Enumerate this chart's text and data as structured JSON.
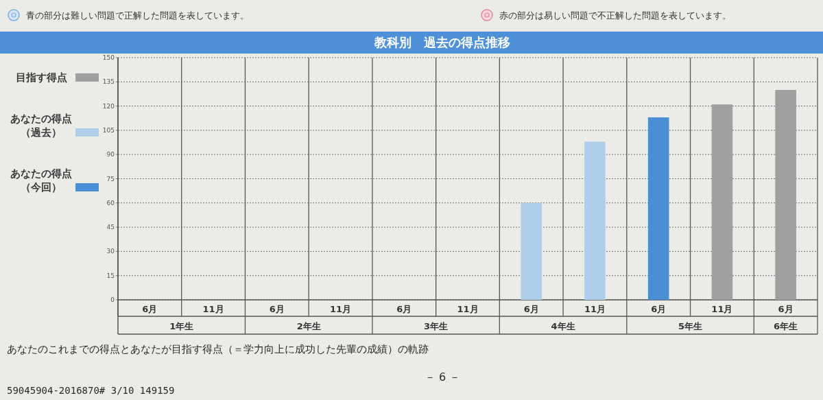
{
  "chart_data": {
    "type": "bar",
    "title": "教科別　過去の得点推移",
    "categories": [
      "6月",
      "11月",
      "6月",
      "11月",
      "6月",
      "11月",
      "6月",
      "11月",
      "6月",
      "11月",
      "6月"
    ],
    "series": [
      {
        "name": "目指す得点",
        "color": "#a0a0a0",
        "values": [
          null,
          null,
          null,
          null,
          null,
          null,
          null,
          null,
          null,
          121,
          130
        ]
      },
      {
        "name": "あなたの得点（過去）",
        "color": "#b0cdea",
        "values": [
          null,
          null,
          null,
          null,
          null,
          null,
          60,
          98,
          null,
          null,
          null
        ]
      },
      {
        "name": "あなたの得点（今回）",
        "color": "#4a8fd6",
        "values": [
          null,
          null,
          null,
          null,
          null,
          null,
          null,
          null,
          113,
          null,
          null
        ]
      }
    ],
    "stacked": true,
    "ylim": [
      0,
      150
    ],
    "yticks": [
      0,
      15,
      30,
      45,
      60,
      75,
      90,
      105,
      120,
      135,
      150
    ],
    "grid": "y",
    "legend": "left",
    "annotations": [
      "青の部分は難しい問題で正解した問題を表しています。",
      "赤の部分は易しい問題で不正解した問題を表しています。",
      "1年生",
      "2年生",
      "3年生",
      "4年生",
      "5年生",
      "6年生",
      "あなたのこれまでの得点とあなたが目指す得点（＝学力向上に成功した先輩の成績）の軌跡",
      "－ 6 －",
      "59045904-2016870# 3/10 149159"
    ]
  }
}
